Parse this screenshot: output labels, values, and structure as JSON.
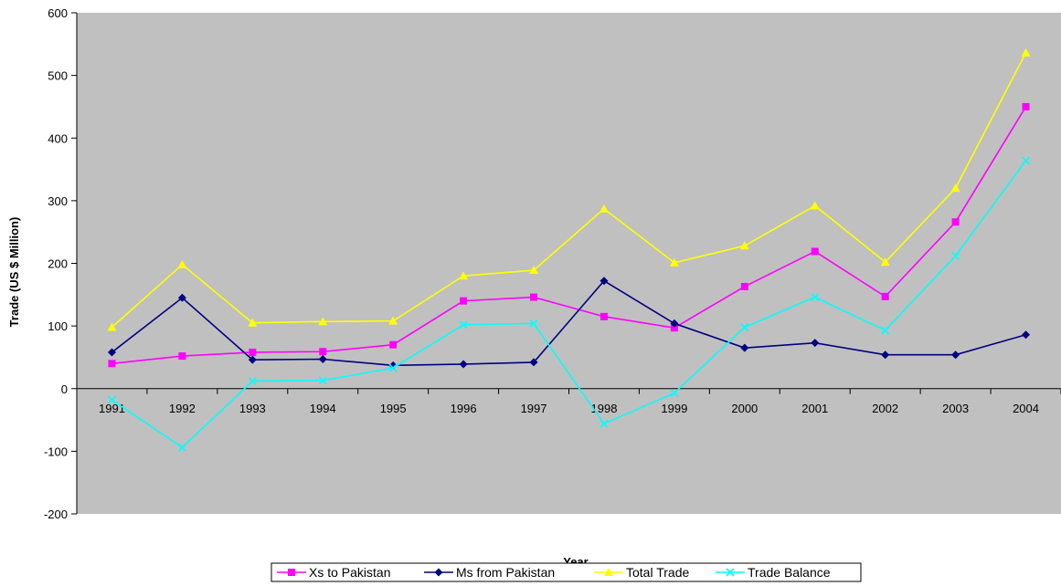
{
  "chart_data": {
    "type": "line",
    "title": "",
    "xlabel": "Year",
    "ylabel": "Trade (US $ Million)",
    "categories": [
      "1991",
      "1992",
      "1993",
      "1994",
      "1995",
      "1996",
      "1997",
      "1998",
      "1999",
      "2000",
      "2001",
      "2002",
      "2003",
      "2004"
    ],
    "ylim": [
      -200,
      600
    ],
    "yticks": [
      -200,
      -100,
      0,
      100,
      200,
      300,
      400,
      500,
      600
    ],
    "grid": false,
    "legend_position": "bottom",
    "plot_background": "#C0C0C0",
    "series": [
      {
        "name": "Xs to Pakistan",
        "color": "#FF00FF",
        "marker": "square",
        "values": [
          40,
          52,
          58,
          59,
          70,
          140,
          146,
          115,
          97,
          163,
          219,
          147,
          266,
          450
        ]
      },
      {
        "name": "Ms from Pakistan",
        "color": "#000080",
        "marker": "diamond",
        "values": [
          58,
          145,
          46,
          47,
          37,
          39,
          42,
          172,
          104,
          65,
          73,
          54,
          54,
          86
        ]
      },
      {
        "name": "Total Trade",
        "color": "#FFFF00",
        "marker": "triangle",
        "values": [
          98,
          198,
          105,
          107,
          108,
          180,
          189,
          287,
          201,
          228,
          292,
          202,
          320,
          536
        ]
      },
      {
        "name": "Trade Balance",
        "color": "#00FFFF",
        "marker": "x",
        "values": [
          -18,
          -94,
          12,
          13,
          33,
          102,
          104,
          -56,
          -7,
          98,
          146,
          93,
          212,
          364
        ]
      }
    ]
  }
}
